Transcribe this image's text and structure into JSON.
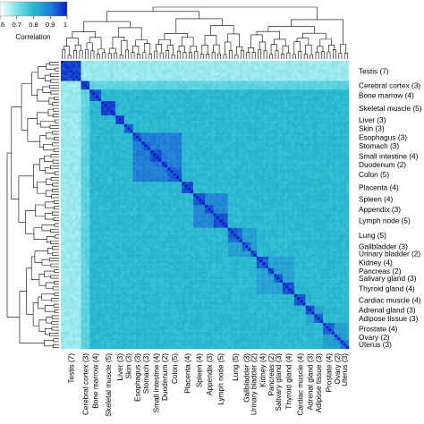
{
  "chart_data": {
    "type": "heatmap",
    "title": "",
    "xlabel": "",
    "ylabel": "",
    "tissues": [
      "Testis (7)",
      "Cerebral cortex (3)",
      "Bone marrow (4)",
      "Skeletal muscle (5)",
      "Liver (3)",
      "Skin (3)",
      "Esophagus (3)",
      "Stomach (3)",
      "Small intestine (4)",
      "Duodenum (2)",
      "Colon (5)",
      "Placenta (4)",
      "Spleen (4)",
      "Appendix (3)",
      "Lymph node (5)",
      "Lung (5)",
      "Gallbladder (3)",
      "Urinary bladder (2)",
      "Kidney (4)",
      "Pancreas (2)",
      "Salivary gland (3)",
      "Thyroid gland (4)",
      "Cardiac muscle (4)",
      "Adrenal gland (3)",
      "Adipose tissue (3)",
      "Prostate (4)",
      "Ovary (2)",
      "Uterus (3)"
    ],
    "sample_counts": [
      7,
      3,
      4,
      5,
      3,
      3,
      3,
      3,
      4,
      2,
      5,
      4,
      4,
      3,
      5,
      5,
      3,
      2,
      4,
      2,
      3,
      4,
      4,
      3,
      3,
      4,
      2,
      3
    ],
    "colorbar": {
      "label": "Correlation",
      "ticks": [
        "0.6",
        "0.7",
        "0.8",
        "0.9",
        "1"
      ],
      "range": [
        0.6,
        1.0
      ],
      "colors": [
        "#ffffff",
        "#7fe3e8",
        "#27b8cf",
        "#1f7fd4",
        "#0b1fc9"
      ]
    },
    "within_tissue_correlation": [
      0.97,
      0.96,
      0.95,
      0.96,
      0.97,
      0.93,
      0.94,
      0.93,
      0.95,
      0.96,
      0.93,
      0.95,
      0.95,
      0.94,
      0.95,
      0.93,
      0.93,
      0.93,
      0.94,
      0.94,
      0.93,
      0.95,
      0.94,
      0.94,
      0.93,
      0.93,
      0.92,
      0.92
    ],
    "between_tissue_baseline": 0.8,
    "highlighted_blocks": [
      {
        "tissues": [
          "Esophagus (3)",
          "Stomach (3)",
          "Small intestine (4)",
          "Duodenum (2)",
          "Colon (5)"
        ],
        "correlation": 0.9
      },
      {
        "tissues": [
          "Spleen (4)",
          "Appendix (3)",
          "Lymph node (5)"
        ],
        "correlation": 0.89
      },
      {
        "tissues": [
          "Lung (5)",
          "Gallbladder (3)",
          "Urinary bladder (2)"
        ],
        "correlation": 0.85
      },
      {
        "tissues": [
          "Kidney (4)",
          "Pancreas (2)",
          "Salivary gland (3)",
          "Thyroid gland (4)"
        ],
        "correlation": 0.84
      },
      {
        "tissues": [
          "Adrenal gland (3)",
          "Adipose tissue (3)"
        ],
        "correlation": 0.84
      },
      {
        "tissues": [
          "Prostate (4)",
          "Ovary (2)",
          "Uterus (3)"
        ],
        "correlation": 0.85
      }
    ],
    "outlier_tissues": {
      "Testis (7)": 0.68,
      "Cerebral cortex (3)": 0.74
    }
  }
}
